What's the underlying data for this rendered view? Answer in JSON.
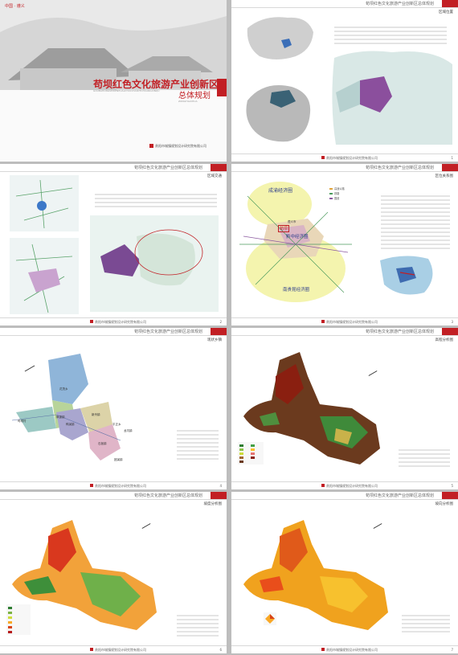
{
  "project_title": "苟坝红色文化旅游产业创新区",
  "header_title": "苟坝红色文化旅游产业创新区总体规划",
  "footer_company": "贵阳市城镇规划设计研究院有限公司",
  "cover": {
    "tag_prefix": "中国 · ",
    "tag_place": "遵义",
    "title": "苟坝红色文化旅游产业创新区",
    "subtitle": "总体规划",
    "pinyin": "GOUBAHONGSEWENHUALVYOUCHANYECHUANGXINQU",
    "pinyin2": "ZONGTIGUIHUA",
    "company": "贵阳市城镇规划设计研究院有限公司"
  },
  "pages": [
    {
      "section": "区域位置",
      "num": "1"
    },
    {
      "section": "区域交通",
      "num": "2"
    },
    {
      "section": "区位关系图",
      "num": "3"
    },
    {
      "section": "现状乡镇",
      "num": "4"
    },
    {
      "section": "高程分析图",
      "num": "5"
    },
    {
      "section": "坡度分析图",
      "num": "6"
    },
    {
      "section": "坡向分析图",
      "num": "7"
    }
  ],
  "region_map": {
    "labels": [
      "成渝经济圈",
      "黔中经济圈",
      "南贵昆经济圈",
      "遵义市",
      "苟坝"
    ],
    "legend": [
      "高速公路",
      "铁路",
      "国道"
    ]
  },
  "township_map": {
    "labels": [
      "花茂乡",
      "枫香镇",
      "苟坝村",
      "鸭溪镇",
      "新舟镇",
      "平正乡",
      "石板镇",
      "龙坑镇",
      "团溪镇"
    ]
  },
  "colors": {
    "accent": "#c21f24",
    "purple": "#7a4a93"
  }
}
